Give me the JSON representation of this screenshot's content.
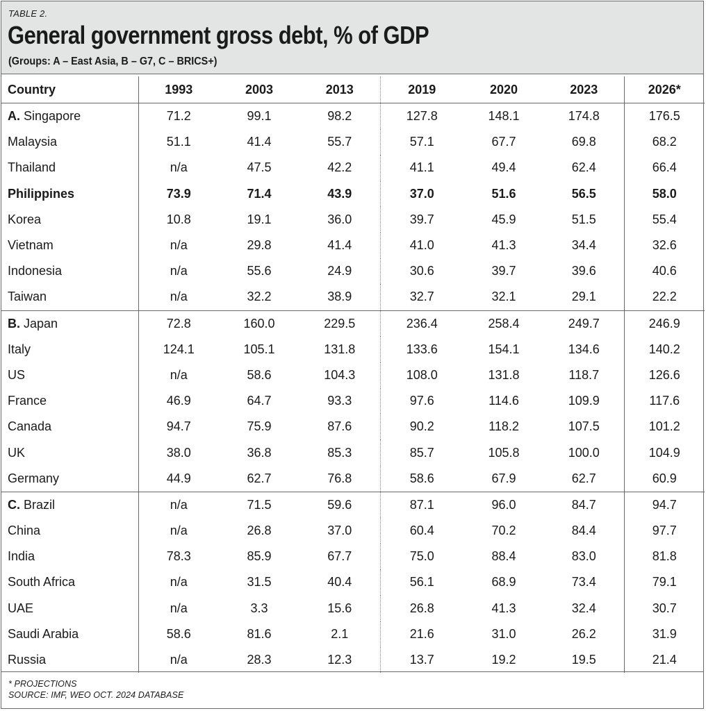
{
  "header": {
    "tag": "TABLE 2.",
    "title": "General government gross debt, % of GDP",
    "subtitle": "(Groups: A – East Asia, B – G7, C – BRICS+)"
  },
  "table": {
    "columns": [
      "Country",
      "1993",
      "2003",
      "2013",
      "2019",
      "2020",
      "2023",
      "2026*"
    ],
    "groups": [
      {
        "prefix": "A.",
        "rows": [
          {
            "country": "Singapore",
            "values": [
              "71.2",
              "99.1",
              "98.2",
              "127.8",
              "148.1",
              "174.8",
              "176.5"
            ]
          },
          {
            "country": "Malaysia",
            "values": [
              "51.1",
              "41.4",
              "55.7",
              "57.1",
              "67.7",
              "69.8",
              "68.2"
            ]
          },
          {
            "country": "Thailand",
            "values": [
              "n/a",
              "47.5",
              "42.2",
              "41.1",
              "49.4",
              "62.4",
              "66.4"
            ]
          },
          {
            "country": "Philippines",
            "values": [
              "73.9",
              "71.4",
              "43.9",
              "37.0",
              "51.6",
              "56.5",
              "58.0"
            ]
          },
          {
            "country": "Korea",
            "values": [
              "10.8",
              "19.1",
              "36.0",
              "39.7",
              "45.9",
              "51.5",
              "55.4"
            ]
          },
          {
            "country": "Vietnam",
            "values": [
              "n/a",
              "29.8",
              "41.4",
              "41.0",
              "41.3",
              "34.4",
              "32.6"
            ]
          },
          {
            "country": "Indonesia",
            "values": [
              "n/a",
              "55.6",
              "24.9",
              "30.6",
              "39.7",
              "39.6",
              "40.6"
            ]
          },
          {
            "country": "Taiwan",
            "values": [
              "n/a",
              "32.2",
              "38.9",
              "32.7",
              "32.1",
              "29.1",
              "22.2"
            ]
          }
        ]
      },
      {
        "prefix": "B.",
        "rows": [
          {
            "country": "Japan",
            "values": [
              "72.8",
              "160.0",
              "229.5",
              "236.4",
              "258.4",
              "249.7",
              "246.9"
            ]
          },
          {
            "country": "Italy",
            "values": [
              "124.1",
              "105.1",
              "131.8",
              "133.6",
              "154.1",
              "134.6",
              "140.2"
            ]
          },
          {
            "country": "US",
            "values": [
              "n/a",
              "58.6",
              "104.3",
              "108.0",
              "131.8",
              "118.7",
              "126.6"
            ]
          },
          {
            "country": "France",
            "values": [
              "46.9",
              "64.7",
              "93.3",
              "97.6",
              "114.6",
              "109.9",
              "117.6"
            ]
          },
          {
            "country": "Canada",
            "values": [
              "94.7",
              "75.9",
              "87.6",
              "90.2",
              "118.2",
              "107.5",
              "101.2"
            ]
          },
          {
            "country": "UK",
            "values": [
              "38.0",
              "36.8",
              "85.3",
              "85.7",
              "105.8",
              "100.0",
              "104.9"
            ]
          },
          {
            "country": "Germany",
            "values": [
              "44.9",
              "62.7",
              "76.8",
              "58.6",
              "67.9",
              "62.7",
              "60.9"
            ]
          }
        ]
      },
      {
        "prefix": "C.",
        "rows": [
          {
            "country": "Brazil",
            "values": [
              "n/a",
              "71.5",
              "59.6",
              "87.1",
              "96.0",
              "84.7",
              "94.7"
            ]
          },
          {
            "country": "China",
            "values": [
              "n/a",
              "26.8",
              "37.0",
              "60.4",
              "70.2",
              "84.4",
              "97.7"
            ]
          },
          {
            "country": "India",
            "values": [
              "78.3",
              "85.9",
              "67.7",
              "75.0",
              "88.4",
              "83.0",
              "81.8"
            ]
          },
          {
            "country": "South Africa",
            "values": [
              "n/a",
              "31.5",
              "40.4",
              "56.1",
              "68.9",
              "73.4",
              "79.1"
            ]
          },
          {
            "country": "UAE",
            "values": [
              "n/a",
              "3.3",
              "15.6",
              "26.8",
              "41.3",
              "32.4",
              "30.7"
            ]
          },
          {
            "country": "Saudi Arabia",
            "values": [
              "58.6",
              "81.6",
              "2.1",
              "21.6",
              "31.0",
              "26.2",
              "31.9"
            ]
          },
          {
            "country": "Russia",
            "values": [
              "n/a",
              "28.3",
              "12.3",
              "13.7",
              "19.2",
              "19.5",
              "21.4"
            ]
          }
        ]
      }
    ],
    "highlighted_country": "Philippines"
  },
  "footer": {
    "note": "* PROJECTIONS",
    "source": "SOURCE: IMF, WEO OCT. 2024 DATABASE"
  },
  "colors": {
    "header_background": "#e3e5e5",
    "rule": "#6a6a6a",
    "text": "#1a1a1a"
  }
}
